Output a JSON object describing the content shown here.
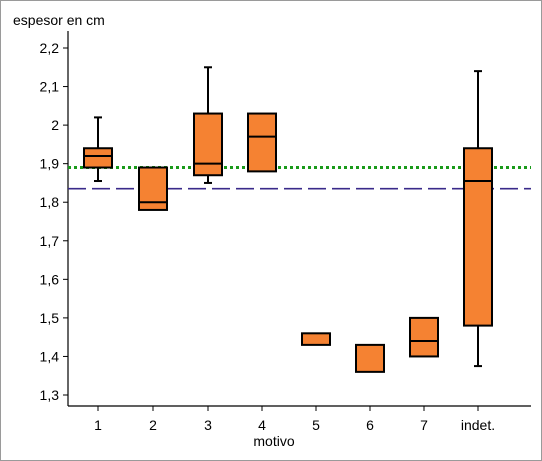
{
  "chart_data": {
    "type": "boxplot",
    "ylabel": "espesor en cm",
    "xlabel": "motivo",
    "ylim": [
      1.3,
      2.2
    ],
    "yticks": [
      "1,3",
      "1,4",
      "1,5",
      "1,6",
      "1,7",
      "1,8",
      "1,9",
      "2",
      "2,1",
      "2,2"
    ],
    "ytick_values": [
      1.3,
      1.4,
      1.5,
      1.6,
      1.7,
      1.8,
      1.9,
      2.0,
      2.1,
      2.2
    ],
    "categories": [
      "1",
      "2",
      "3",
      "4",
      "5",
      "6",
      "7",
      "indet."
    ],
    "boxes": [
      {
        "min": 1.855,
        "q1": 1.89,
        "median": 1.92,
        "q3": 1.94,
        "max": 2.02
      },
      {
        "min": null,
        "q1": 1.78,
        "median": 1.8,
        "q3": 1.89,
        "max": null
      },
      {
        "min": 1.85,
        "q1": 1.87,
        "median": 1.9,
        "q3": 2.03,
        "max": 2.15
      },
      {
        "min": null,
        "q1": 1.88,
        "median": 1.97,
        "q3": 2.03,
        "max": null
      },
      {
        "min": null,
        "q1": 1.43,
        "median": null,
        "q3": 1.46,
        "max": null
      },
      {
        "min": null,
        "q1": 1.36,
        "median": null,
        "q3": 1.43,
        "max": null
      },
      {
        "min": null,
        "q1": 1.4,
        "median": 1.44,
        "q3": 1.5,
        "max": null
      },
      {
        "min": 1.375,
        "q1": 1.48,
        "median": 1.855,
        "q3": 1.94,
        "max": 2.14
      }
    ],
    "reference_lines": [
      {
        "y": 1.89,
        "color": "#1a9a1a",
        "style": "dotted"
      },
      {
        "y": 1.835,
        "color": "#3a2a8a",
        "style": "dashed"
      }
    ],
    "box_color": "#f58232",
    "grid": false
  }
}
